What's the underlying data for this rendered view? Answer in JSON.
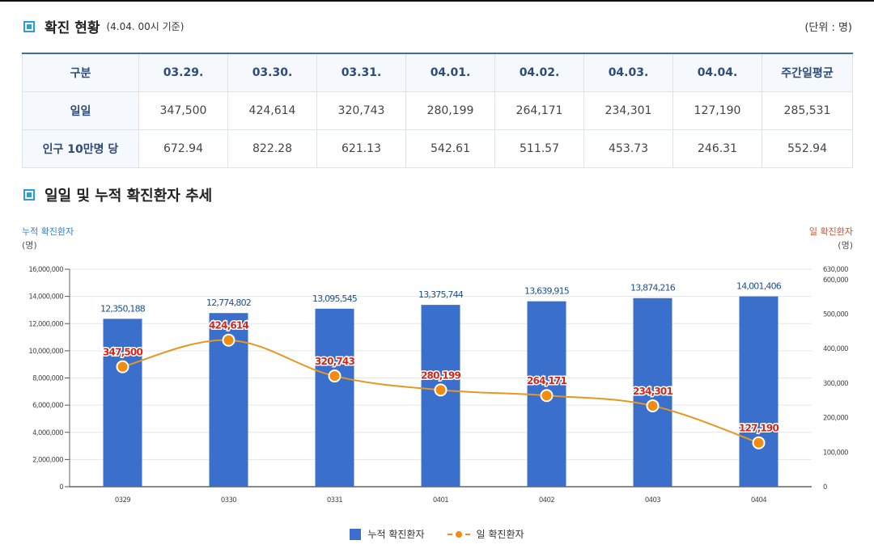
{
  "section1": {
    "title": "확진 현황",
    "basis": "(4.04. 00시 기준)",
    "unit": "(단위 : 명)"
  },
  "table": {
    "headers": [
      "구분",
      "03.29.",
      "03.30.",
      "03.31.",
      "04.01.",
      "04.02.",
      "04.03.",
      "04.04.",
      "주간일평균"
    ],
    "rows": [
      {
        "label": "일일",
        "values": [
          "347,500",
          "424,614",
          "320,743",
          "280,199",
          "264,171",
          "234,301",
          "127,190",
          "285,531"
        ]
      },
      {
        "label": "인구 10만명 당",
        "values": [
          "672.94",
          "822.28",
          "621.13",
          "542.61",
          "511.57",
          "453.73",
          "246.31",
          "552.94"
        ]
      }
    ]
  },
  "section2": {
    "title": "일일 및 누적 확진환자 추세"
  },
  "axes": {
    "left_title": "누적 확진환자",
    "left_unit": "(명)",
    "right_title": "일 확진환자",
    "right_unit": "(명)"
  },
  "colors": {
    "bar": "#3a6fcb",
    "line": "#f08c11",
    "label_red": "#d0281b",
    "label_blue": "#1e4e8c",
    "left_axis_title": "#3b7fc2",
    "right_axis_title": "#d0502a"
  },
  "legend": {
    "bar_label": "누적 확진환자",
    "line_label": "일 확진환자"
  },
  "chart_data": {
    "type": "bar+line",
    "categories": [
      "03.29",
      "03.30",
      "03.31",
      "04.01",
      "04.02",
      "04.03",
      "04.04"
    ],
    "series": [
      {
        "name": "누적 확진환자",
        "type": "bar",
        "axis": "left",
        "values": [
          12350188,
          12774802,
          13095545,
          13375744,
          13639915,
          13874216,
          14001406
        ],
        "labels": [
          "12,350,188",
          "12,774,802",
          "13,095,545",
          "13,375,744",
          "13,639,915",
          "13,874,216",
          "14,001,406"
        ]
      },
      {
        "name": "일 확진환자",
        "type": "line",
        "axis": "right",
        "values": [
          347500,
          424614,
          320743,
          280199,
          264171,
          234301,
          127190
        ],
        "labels": [
          "347,500",
          "424,614",
          "320,743",
          "280,199",
          "264,171",
          "234,301",
          "127,190"
        ]
      }
    ],
    "left_axis": {
      "ylim": [
        0,
        16000000
      ],
      "ticks": [
        "0",
        "2,000,000",
        "4,000,000",
        "6,000,000",
        "8,000,000",
        "10,000,000",
        "12,000,000",
        "14,000,000",
        "16,000,000"
      ]
    },
    "right_axis": {
      "ylim": [
        0,
        630000
      ],
      "ticks": [
        "0",
        "100,000",
        "200,000",
        "300,000",
        "400,000",
        "500,000",
        "600,000",
        "630,000"
      ],
      "tick_values": [
        0,
        100000,
        200000,
        300000,
        400000,
        500000,
        600000,
        630000
      ]
    }
  }
}
